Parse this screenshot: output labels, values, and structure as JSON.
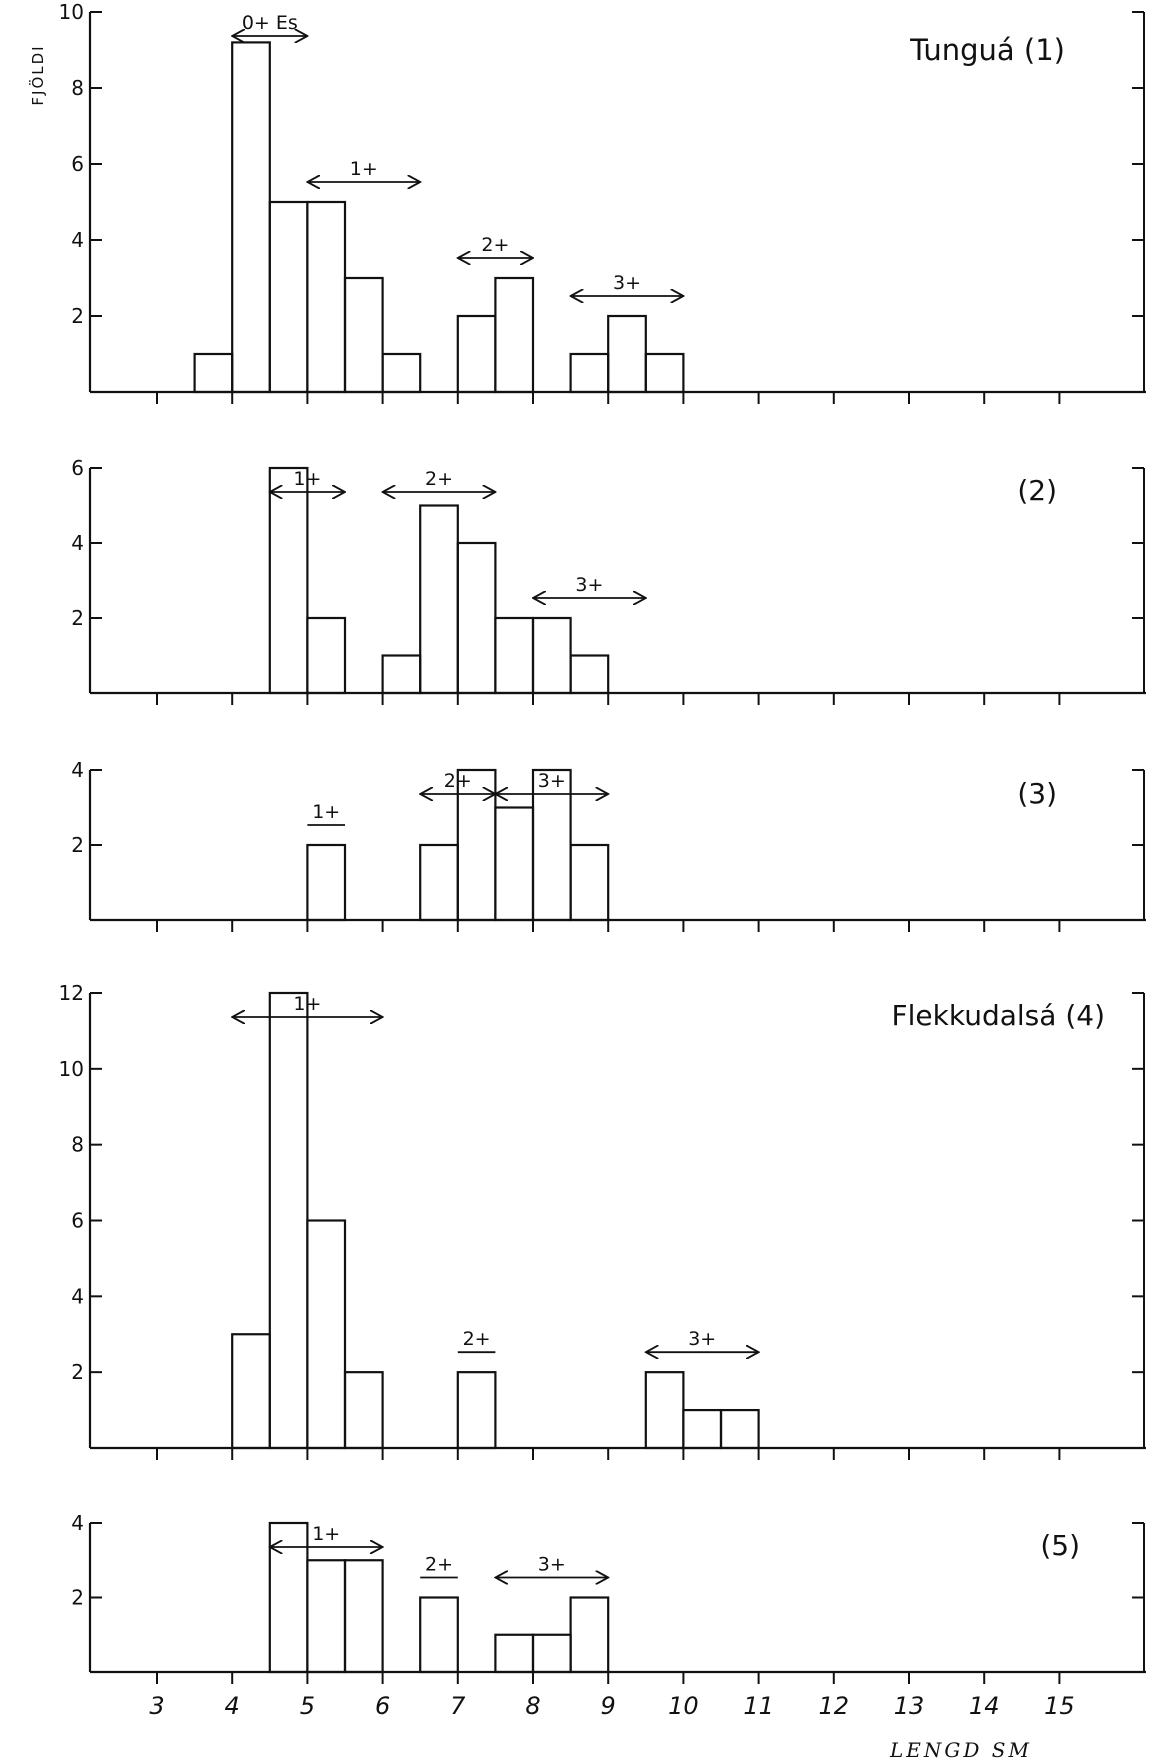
{
  "figure": {
    "ylabel": "FJÖLDI",
    "xlabel": "LENGD SM",
    "x_ticks": [
      "3",
      "4",
      "5",
      "6",
      "7",
      "8",
      "9",
      "10",
      "11",
      "12",
      "13",
      "14",
      "15"
    ]
  },
  "chart_data": [
    {
      "type": "bar",
      "panel": 1,
      "title": "Tunguá (1)",
      "bin_width": 0.5,
      "bars": [
        {
          "x": 3.75,
          "y": 1
        },
        {
          "x": 4.25,
          "y": 9.2
        },
        {
          "x": 4.75,
          "y": 5
        },
        {
          "x": 5.25,
          "y": 5
        },
        {
          "x": 5.75,
          "y": 3
        },
        {
          "x": 6.25,
          "y": 1
        },
        {
          "x": 7.25,
          "y": 2
        },
        {
          "x": 7.75,
          "y": 3
        },
        {
          "x": 8.75,
          "y": 1
        },
        {
          "x": 9.25,
          "y": 2
        },
        {
          "x": 9.75,
          "y": 1
        }
      ],
      "yticks": [
        "2",
        "4",
        "6",
        "8",
        "10"
      ],
      "ylim": [
        0,
        10
      ],
      "annotations": [
        {
          "label": "0+ Es",
          "from": 4.0,
          "to": 5.0,
          "arrow": true
        },
        {
          "label": "1+",
          "from": 5.0,
          "to": 6.5,
          "arrow": true
        },
        {
          "label": "2+",
          "from": 7.0,
          "to": 8.0,
          "arrow": true
        },
        {
          "label": "3+",
          "from": 8.5,
          "to": 10.0,
          "arrow": true
        }
      ]
    },
    {
      "type": "bar",
      "panel": 2,
      "title": "(2)",
      "bin_width": 0.5,
      "bars": [
        {
          "x": 4.75,
          "y": 6
        },
        {
          "x": 5.25,
          "y": 2
        },
        {
          "x": 6.25,
          "y": 1
        },
        {
          "x": 6.75,
          "y": 5
        },
        {
          "x": 7.25,
          "y": 4
        },
        {
          "x": 7.75,
          "y": 2
        },
        {
          "x": 8.25,
          "y": 2
        },
        {
          "x": 8.75,
          "y": 1
        }
      ],
      "yticks": [
        "2",
        "4",
        "6"
      ],
      "ylim": [
        0,
        6
      ],
      "annotations": [
        {
          "label": "1+",
          "from": 4.5,
          "to": 5.5,
          "arrow": true
        },
        {
          "label": "2+",
          "from": 6.0,
          "to": 7.5,
          "arrow": true
        },
        {
          "label": "3+",
          "from": 8.0,
          "to": 9.5,
          "arrow": true
        }
      ]
    },
    {
      "type": "bar",
      "panel": 3,
      "title": "(3)",
      "bin_width": 0.5,
      "bars": [
        {
          "x": 5.25,
          "y": 2
        },
        {
          "x": 6.75,
          "y": 2
        },
        {
          "x": 7.25,
          "y": 4
        },
        {
          "x": 7.75,
          "y": 3
        },
        {
          "x": 8.25,
          "y": 4
        },
        {
          "x": 8.75,
          "y": 2
        }
      ],
      "yticks": [
        "2",
        "4"
      ],
      "ylim": [
        0,
        4
      ],
      "annotations": [
        {
          "label": "1+",
          "from": 5.0,
          "to": 5.5,
          "arrow": false
        },
        {
          "label": "2+",
          "from": 6.5,
          "to": 7.5,
          "arrow": true
        },
        {
          "label": "3+",
          "from": 7.5,
          "to": 9.0,
          "arrow": true
        }
      ]
    },
    {
      "type": "bar",
      "panel": 4,
      "title": "Flekkudalsá (4)",
      "bin_width": 0.5,
      "bars": [
        {
          "x": 4.25,
          "y": 3
        },
        {
          "x": 4.75,
          "y": 12
        },
        {
          "x": 5.25,
          "y": 6
        },
        {
          "x": 5.75,
          "y": 2
        },
        {
          "x": 7.25,
          "y": 2
        },
        {
          "x": 9.75,
          "y": 2
        },
        {
          "x": 10.25,
          "y": 1
        },
        {
          "x": 10.75,
          "y": 1
        }
      ],
      "yticks": [
        "2",
        "4",
        "6",
        "8",
        "10",
        "12"
      ],
      "ylim": [
        0,
        12
      ],
      "annotations": [
        {
          "label": "1+",
          "from": 4.0,
          "to": 6.0,
          "arrow": true
        },
        {
          "label": "2+",
          "from": 7.0,
          "to": 7.5,
          "arrow": false
        },
        {
          "label": "3+",
          "from": 9.5,
          "to": 11.0,
          "arrow": true
        }
      ]
    },
    {
      "type": "bar",
      "panel": 5,
      "title": "(5)",
      "bin_width": 0.5,
      "bars": [
        {
          "x": 4.75,
          "y": 4
        },
        {
          "x": 5.25,
          "y": 3
        },
        {
          "x": 5.75,
          "y": 3
        },
        {
          "x": 6.75,
          "y": 2
        },
        {
          "x": 7.75,
          "y": 1
        },
        {
          "x": 8.25,
          "y": 1
        },
        {
          "x": 8.75,
          "y": 2
        }
      ],
      "yticks": [
        "2",
        "4"
      ],
      "ylim": [
        0,
        4
      ],
      "annotations": [
        {
          "label": "1+",
          "from": 4.5,
          "to": 6.0,
          "arrow": true
        },
        {
          "label": "2+",
          "from": 6.5,
          "to": 7.0,
          "arrow": false
        },
        {
          "label": "3+",
          "from": 7.5,
          "to": 9.0,
          "arrow": true
        }
      ]
    }
  ]
}
